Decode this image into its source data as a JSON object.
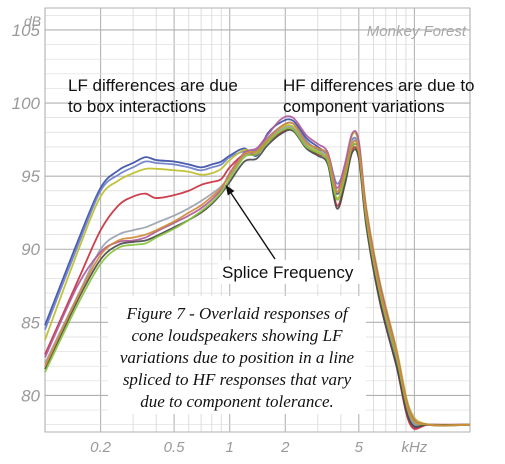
{
  "chart_data": {
    "type": "line",
    "title": "",
    "ylabel": "dB",
    "xlabel": "kHz",
    "x_scale": "log",
    "xlim": [
      0.1,
      20
    ],
    "ylim": [
      77.5,
      106.5
    ],
    "grid": true,
    "x_tick_labels": [
      {
        "x": 0.2,
        "label": "0.2"
      },
      {
        "x": 0.5,
        "label": "0.5"
      },
      {
        "x": 1,
        "label": "1"
      },
      {
        "x": 2,
        "label": "2"
      },
      {
        "x": 5,
        "label": "5"
      },
      {
        "x": 10,
        "label": "kHz"
      }
    ],
    "y_ticks": [
      80,
      85,
      90,
      95,
      100,
      105
    ],
    "watermark": "Monkey Forest",
    "annotations": {
      "lf": [
        "LF differences are due",
        "to box interactions"
      ],
      "hf": [
        "HF differences are due to",
        "component variations"
      ],
      "splice": "Splice Frequency",
      "splice_point": {
        "x": 0.95,
        "y": 94.4
      }
    },
    "caption": [
      "Figure 7 - Overlaid responses of",
      "cone loudspeakers showing LF",
      "variations due to position in a line",
      "spliced to HF responses that vary",
      "due to component tolerance."
    ],
    "series": [
      {
        "color": "#3b4fa8",
        "points": [
          [
            0.1,
            84.8
          ],
          [
            0.15,
            90.5
          ],
          [
            0.2,
            94.2
          ],
          [
            0.25,
            95.4
          ],
          [
            0.3,
            95.9
          ],
          [
            0.35,
            96.3
          ],
          [
            0.4,
            96.1
          ],
          [
            0.5,
            96.0
          ],
          [
            0.6,
            95.8
          ],
          [
            0.7,
            95.6
          ],
          [
            0.8,
            95.8
          ],
          [
            0.9,
            96.0
          ],
          [
            1.0,
            96.4
          ],
          [
            1.2,
            96.9
          ],
          [
            1.4,
            96.4
          ],
          [
            1.6,
            97.9
          ],
          [
            1.9,
            98.7
          ],
          [
            2.2,
            98.8
          ],
          [
            2.6,
            97.6
          ],
          [
            3.0,
            97.0
          ],
          [
            3.4,
            96.3
          ],
          [
            3.8,
            93.8
          ],
          [
            4.2,
            95.2
          ],
          [
            4.6,
            97.0
          ],
          [
            5.0,
            96.6
          ],
          [
            5.5,
            92.0
          ],
          [
            6.5,
            87.0
          ],
          [
            8.0,
            82.5
          ],
          [
            9.5,
            78.2
          ],
          [
            12,
            78.0
          ],
          [
            20,
            78.0
          ]
        ]
      },
      {
        "color": "#6c7fc9",
        "points": [
          [
            0.1,
            84.5
          ],
          [
            0.15,
            90.2
          ],
          [
            0.2,
            94.0
          ],
          [
            0.25,
            95.1
          ],
          [
            0.3,
            95.6
          ],
          [
            0.35,
            96.0
          ],
          [
            0.4,
            95.9
          ],
          [
            0.5,
            95.8
          ],
          [
            0.6,
            95.6
          ],
          [
            0.7,
            95.4
          ],
          [
            0.8,
            95.6
          ],
          [
            0.9,
            95.8
          ],
          [
            1.0,
            96.3
          ],
          [
            1.2,
            96.7
          ],
          [
            1.4,
            96.8
          ],
          [
            1.6,
            97.6
          ],
          [
            1.9,
            98.4
          ],
          [
            2.2,
            98.6
          ],
          [
            2.6,
            97.4
          ],
          [
            3.0,
            96.8
          ],
          [
            3.4,
            96.5
          ],
          [
            3.8,
            94.5
          ],
          [
            4.2,
            95.6
          ],
          [
            4.6,
            97.5
          ],
          [
            5.0,
            96.9
          ],
          [
            5.5,
            92.4
          ],
          [
            6.5,
            87.4
          ],
          [
            8.0,
            83.0
          ],
          [
            9.5,
            78.5
          ],
          [
            12,
            78.0
          ],
          [
            20,
            78.0
          ]
        ]
      },
      {
        "color": "#bcbf2a",
        "points": [
          [
            0.1,
            83.8
          ],
          [
            0.15,
            89.8
          ],
          [
            0.2,
            93.6
          ],
          [
            0.25,
            94.7
          ],
          [
            0.3,
            95.2
          ],
          [
            0.35,
            95.5
          ],
          [
            0.4,
            95.5
          ],
          [
            0.5,
            95.4
          ],
          [
            0.6,
            95.3
          ],
          [
            0.7,
            95.1
          ],
          [
            0.8,
            95.2
          ],
          [
            0.9,
            95.5
          ],
          [
            1.0,
            96.1
          ],
          [
            1.2,
            96.8
          ],
          [
            1.4,
            96.6
          ],
          [
            1.6,
            97.4
          ],
          [
            1.9,
            98.3
          ],
          [
            2.2,
            98.4
          ],
          [
            2.6,
            97.2
          ],
          [
            3.0,
            96.7
          ],
          [
            3.4,
            96.2
          ],
          [
            3.8,
            93.5
          ],
          [
            4.2,
            95.0
          ],
          [
            4.6,
            97.8
          ],
          [
            5.0,
            97.2
          ],
          [
            5.5,
            92.8
          ],
          [
            6.5,
            87.8
          ],
          [
            8.0,
            83.2
          ],
          [
            9.5,
            79.0
          ],
          [
            12,
            78.0
          ],
          [
            20,
            78.0
          ]
        ]
      },
      {
        "color": "#c8303d",
        "points": [
          [
            0.1,
            82.8
          ],
          [
            0.15,
            87.8
          ],
          [
            0.2,
            91.3
          ],
          [
            0.25,
            93.0
          ],
          [
            0.3,
            93.6
          ],
          [
            0.35,
            93.8
          ],
          [
            0.4,
            93.5
          ],
          [
            0.5,
            93.7
          ],
          [
            0.6,
            94.0
          ],
          [
            0.7,
            94.4
          ],
          [
            0.8,
            94.6
          ],
          [
            0.9,
            94.8
          ],
          [
            1.0,
            95.6
          ],
          [
            1.2,
            96.5
          ],
          [
            1.4,
            96.5
          ],
          [
            1.6,
            97.3
          ],
          [
            1.9,
            98.0
          ],
          [
            2.2,
            98.2
          ],
          [
            2.6,
            97.0
          ],
          [
            3.0,
            96.5
          ],
          [
            3.4,
            96.0
          ],
          [
            3.8,
            93.0
          ],
          [
            4.2,
            94.6
          ],
          [
            4.6,
            96.8
          ],
          [
            5.0,
            96.3
          ],
          [
            5.5,
            91.8
          ],
          [
            6.5,
            86.5
          ],
          [
            8.0,
            82.0
          ],
          [
            9.5,
            78.0
          ],
          [
            12,
            78.0
          ],
          [
            20,
            78.0
          ]
        ]
      },
      {
        "color": "#9aa2b0",
        "points": [
          [
            0.1,
            82.2
          ],
          [
            0.15,
            86.8
          ],
          [
            0.2,
            90.0
          ],
          [
            0.25,
            91.0
          ],
          [
            0.3,
            91.3
          ],
          [
            0.35,
            91.5
          ],
          [
            0.4,
            91.8
          ],
          [
            0.5,
            92.3
          ],
          [
            0.6,
            92.8
          ],
          [
            0.7,
            93.3
          ],
          [
            0.8,
            93.8
          ],
          [
            0.9,
            94.3
          ],
          [
            1.0,
            95.0
          ],
          [
            1.2,
            96.4
          ],
          [
            1.4,
            96.7
          ],
          [
            1.6,
            97.5
          ],
          [
            1.9,
            98.2
          ],
          [
            2.2,
            98.3
          ],
          [
            2.6,
            97.1
          ],
          [
            3.0,
            96.6
          ],
          [
            3.4,
            96.3
          ],
          [
            3.8,
            94.0
          ],
          [
            4.2,
            95.4
          ],
          [
            4.6,
            97.3
          ],
          [
            5.0,
            96.8
          ],
          [
            5.5,
            92.2
          ],
          [
            6.5,
            87.2
          ],
          [
            8.0,
            82.8
          ],
          [
            9.5,
            78.4
          ],
          [
            12,
            78.0
          ],
          [
            20,
            78.0
          ]
        ]
      },
      {
        "color": "#b05a9a",
        "points": [
          [
            0.1,
            82.6
          ],
          [
            0.15,
            87.5
          ],
          [
            0.2,
            89.8
          ],
          [
            0.25,
            90.5
          ],
          [
            0.3,
            90.6
          ],
          [
            0.35,
            90.8
          ],
          [
            0.4,
            91.2
          ],
          [
            0.5,
            91.8
          ],
          [
            0.6,
            92.3
          ],
          [
            0.7,
            92.8
          ],
          [
            0.8,
            93.4
          ],
          [
            0.9,
            94.1
          ],
          [
            1.0,
            95.2
          ],
          [
            1.2,
            96.6
          ],
          [
            1.4,
            96.9
          ],
          [
            1.6,
            97.8
          ],
          [
            1.9,
            98.9
          ],
          [
            2.2,
            99.0
          ],
          [
            2.6,
            97.8
          ],
          [
            3.0,
            97.2
          ],
          [
            3.4,
            96.6
          ],
          [
            3.8,
            94.2
          ],
          [
            4.2,
            95.8
          ],
          [
            4.6,
            97.9
          ],
          [
            5.0,
            97.4
          ],
          [
            5.5,
            92.6
          ],
          [
            6.5,
            87.6
          ],
          [
            8.0,
            83.0
          ],
          [
            9.5,
            78.8
          ],
          [
            12,
            78.0
          ],
          [
            20,
            78.0
          ]
        ]
      },
      {
        "color": "#4a4a4a",
        "points": [
          [
            0.1,
            81.8
          ],
          [
            0.15,
            86.5
          ],
          [
            0.2,
            89.3
          ],
          [
            0.25,
            90.3
          ],
          [
            0.3,
            90.5
          ],
          [
            0.35,
            90.6
          ],
          [
            0.4,
            90.9
          ],
          [
            0.5,
            91.5
          ],
          [
            0.6,
            92.0
          ],
          [
            0.7,
            92.5
          ],
          [
            0.8,
            93.1
          ],
          [
            0.9,
            93.8
          ],
          [
            1.0,
            94.6
          ],
          [
            1.2,
            96.0
          ],
          [
            1.4,
            96.2
          ],
          [
            1.6,
            97.1
          ],
          [
            1.9,
            97.9
          ],
          [
            2.2,
            98.1
          ],
          [
            2.6,
            96.9
          ],
          [
            3.0,
            96.4
          ],
          [
            3.4,
            95.8
          ],
          [
            3.8,
            92.8
          ],
          [
            4.2,
            94.4
          ],
          [
            4.6,
            96.6
          ],
          [
            5.0,
            96.2
          ],
          [
            5.5,
            91.5
          ],
          [
            6.5,
            86.4
          ],
          [
            8.0,
            82.0
          ],
          [
            9.5,
            78.2
          ],
          [
            12,
            78.0
          ],
          [
            20,
            78.0
          ]
        ]
      },
      {
        "color": "#86c23c",
        "points": [
          [
            0.1,
            81.6
          ],
          [
            0.15,
            86.2
          ],
          [
            0.2,
            89.0
          ],
          [
            0.25,
            90.1
          ],
          [
            0.3,
            90.3
          ],
          [
            0.35,
            90.4
          ],
          [
            0.4,
            90.8
          ],
          [
            0.5,
            91.4
          ],
          [
            0.6,
            92.0
          ],
          [
            0.7,
            92.6
          ],
          [
            0.8,
            93.2
          ],
          [
            0.9,
            93.9
          ],
          [
            1.0,
            94.8
          ],
          [
            1.2,
            96.3
          ],
          [
            1.4,
            96.5
          ],
          [
            1.6,
            97.3
          ],
          [
            1.9,
            98.1
          ],
          [
            2.2,
            98.2
          ],
          [
            2.6,
            97.0
          ],
          [
            3.0,
            96.6
          ],
          [
            3.4,
            96.0
          ],
          [
            3.8,
            93.4
          ],
          [
            4.2,
            94.9
          ],
          [
            4.6,
            97.0
          ],
          [
            5.0,
            96.6
          ],
          [
            5.5,
            92.0
          ],
          [
            6.5,
            87.0
          ],
          [
            8.0,
            82.6
          ],
          [
            9.5,
            78.6
          ],
          [
            12,
            78.0
          ],
          [
            20,
            78.0
          ]
        ]
      },
      {
        "color": "#d08a3a",
        "points": [
          [
            0.1,
            82.0
          ],
          [
            0.15,
            86.7
          ],
          [
            0.2,
            89.6
          ],
          [
            0.25,
            90.6
          ],
          [
            0.3,
            90.8
          ],
          [
            0.35,
            91.0
          ],
          [
            0.4,
            91.3
          ],
          [
            0.5,
            91.9
          ],
          [
            0.6,
            92.5
          ],
          [
            0.7,
            93.0
          ],
          [
            0.8,
            93.6
          ],
          [
            0.9,
            94.2
          ],
          [
            1.0,
            95.1
          ],
          [
            1.2,
            96.5
          ],
          [
            1.4,
            96.7
          ],
          [
            1.6,
            97.5
          ],
          [
            1.9,
            98.4
          ],
          [
            2.2,
            98.6
          ],
          [
            2.6,
            97.3
          ],
          [
            3.0,
            96.9
          ],
          [
            3.4,
            96.4
          ],
          [
            3.8,
            93.9
          ],
          [
            4.2,
            95.3
          ],
          [
            4.6,
            97.2
          ],
          [
            5.0,
            96.8
          ],
          [
            5.5,
            92.3
          ],
          [
            6.5,
            87.3
          ],
          [
            8.0,
            82.9
          ],
          [
            9.5,
            78.7
          ],
          [
            12,
            78.0
          ],
          [
            20,
            78.0
          ]
        ]
      }
    ]
  }
}
